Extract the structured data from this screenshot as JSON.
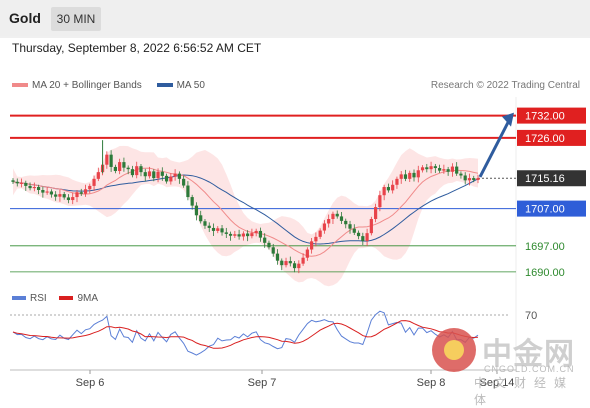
{
  "header": {
    "asset": "Gold",
    "timeframe": "30 MIN",
    "datetime": "Thursday, September 8, 2022 6:56:52 AM CET"
  },
  "legend": {
    "items": [
      {
        "label": "MA 20 + Bollinger Bands",
        "color": "#f08a8a"
      },
      {
        "label": "MA 50",
        "color": "#2f5c9e"
      }
    ],
    "copyright": "Research © 2022 Trading Central"
  },
  "rsi_legend": {
    "items": [
      {
        "label": "RSI",
        "color": "#5b7fd6"
      },
      {
        "label": "9MA",
        "color": "#d92020"
      }
    ],
    "level": "70"
  },
  "watermark": {
    "name": "中金网",
    "url": "CNGOLD.COM.CN",
    "sub": "中文财经媒体"
  },
  "chart_data": {
    "type": "candlestick",
    "instrument": "Gold",
    "interval": "30 MIN",
    "x_tick_labels": [
      "Sep 6",
      "Sep 7",
      "Sep 8",
      "Sep 14"
    ],
    "ylim": [
      1687,
      1737
    ],
    "price_levels": [
      {
        "label": "1732.00",
        "value": 1732.0,
        "color": "#e02020",
        "style": "resistance"
      },
      {
        "label": "1726.00",
        "value": 1726.0,
        "color": "#e02020",
        "style": "resistance"
      },
      {
        "label": "1715.16",
        "value": 1715.16,
        "color": "#333333",
        "style": "last"
      },
      {
        "label": "1707.00",
        "value": 1707.0,
        "color": "#2f5ed8",
        "style": "pivot"
      },
      {
        "label": "1697.00",
        "value": 1697.0,
        "color": "#2f8a2f",
        "style": "support"
      },
      {
        "label": "1690.00",
        "value": 1690.0,
        "color": "#2f8a2f",
        "style": "support"
      }
    ],
    "close": [
      1714.2,
      1713.8,
      1713.9,
      1713.1,
      1712.5,
      1712.8,
      1712.0,
      1711.3,
      1711.6,
      1710.8,
      1710.2,
      1710.9,
      1710.0,
      1709.3,
      1710.1,
      1711.4,
      1711.0,
      1712.2,
      1713.1,
      1715.0,
      1716.8,
      1718.8,
      1721.5,
      1718.2,
      1717.1,
      1719.5,
      1718.0,
      1717.6,
      1716.0,
      1718.4,
      1716.8,
      1715.7,
      1717.0,
      1715.2,
      1716.9,
      1715.8,
      1714.3,
      1715.6,
      1716.4,
      1715.0,
      1713.2,
      1710.1,
      1707.8,
      1705.2,
      1703.6,
      1702.4,
      1701.8,
      1701.0,
      1701.7,
      1700.6,
      1700.2,
      1699.7,
      1700.1,
      1699.5,
      1700.3,
      1699.6,
      1700.4,
      1701.0,
      1699.2,
      1697.8,
      1696.6,
      1694.9,
      1693.0,
      1691.8,
      1692.9,
      1692.3,
      1691.0,
      1692.2,
      1693.8,
      1696.0,
      1698.2,
      1699.4,
      1701.1,
      1703.0,
      1704.2,
      1705.6,
      1704.9,
      1703.7,
      1702.8,
      1701.6,
      1700.5,
      1699.6,
      1698.3,
      1700.4,
      1704.2,
      1707.4,
      1710.6,
      1712.8,
      1711.9,
      1713.4,
      1715.0,
      1716.2,
      1715.0,
      1716.6,
      1715.4,
      1717.3,
      1718.1,
      1717.6,
      1718.4,
      1717.9,
      1717.2,
      1717.6,
      1716.9,
      1718.3,
      1716.4,
      1715.9,
      1714.6,
      1715.2,
      1714.7,
      1715.2
    ]
  }
}
